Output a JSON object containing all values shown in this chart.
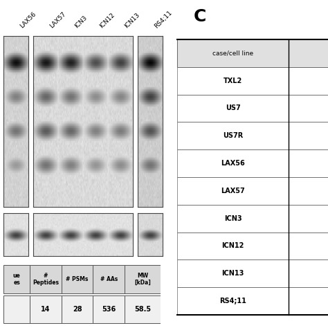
{
  "title_c": "C",
  "blot_labels": [
    "LAX56",
    "LAX57",
    "ICN3",
    "ICN12",
    "ICN13",
    "RS4;11"
  ],
  "table_rows": [
    "TXL2",
    "US7",
    "US7R",
    "LAX56",
    "LAX57",
    "ICN3",
    "ICN12",
    "ICN13",
    "RS4;11"
  ],
  "bottom_table_headers": [
    "#\nPeptides",
    "# PSMs",
    "# AAs",
    "MW\n[kDa]"
  ],
  "bottom_table_values": [
    "14",
    "28",
    "536",
    "58.5"
  ],
  "bg_color": "#ffffff"
}
